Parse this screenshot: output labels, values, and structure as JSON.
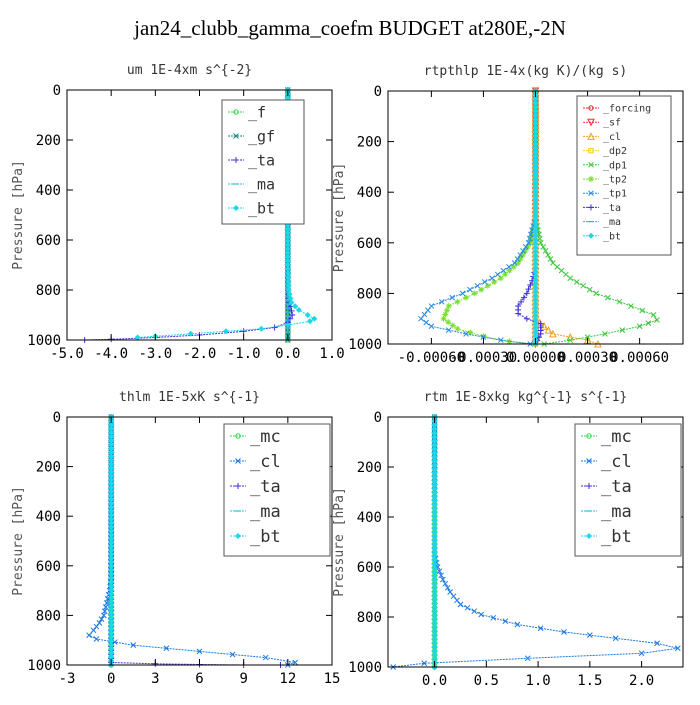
{
  "suptitle": "jan24_clubb_gamma_coefm  BUDGET at280E,-2N",
  "chart_data": [
    {
      "type": "line",
      "title": "um  1E-4xm s^{-2}",
      "ylabel": "Pressure [hPa]",
      "xlim": [
        -5.0,
        1.0
      ],
      "ylim": [
        1000,
        0
      ],
      "xticks": [
        -5.0,
        -4.0,
        -3.0,
        -2.0,
        -1.0,
        0.0,
        1.0
      ],
      "xtick_labels": [
        "-5.0",
        "-4.0",
        "-3.0",
        "-2.0",
        "-1.0",
        "0.0",
        "1.0"
      ],
      "yticks": [
        0,
        200,
        400,
        600,
        800,
        1000
      ],
      "ytick_labels": [
        "0",
        "200",
        "400",
        "600",
        "800",
        "1000"
      ],
      "legend": "top-right",
      "series": [
        {
          "name": "_f",
          "color": "#2fd84a",
          "marker": "o",
          "x": [
            0.0,
            0.0
          ],
          "y": [
            0,
            1000
          ]
        },
        {
          "name": "_gf",
          "color": "#16867a",
          "marker": "x",
          "x": [
            0.0,
            0.0
          ],
          "y": [
            0,
            1000
          ]
        },
        {
          "name": "_ta",
          "color": "#3b2fd8",
          "marker": "+",
          "x": [
            0.0,
            0.0,
            0.01,
            0.05,
            0.1,
            0.0,
            -0.3,
            -1.0,
            -2.0,
            -3.0,
            -4.0,
            -4.6
          ],
          "y": [
            0,
            700,
            800,
            850,
            900,
            930,
            950,
            965,
            980,
            990,
            997,
            1000
          ]
        },
        {
          "name": "_ma",
          "color": "#2eb8d8",
          "marker": "-",
          "x": [
            0.0,
            0.0
          ],
          "y": [
            0,
            1000
          ]
        },
        {
          "name": "_bt",
          "color": "#1ad8e8",
          "marker": "D",
          "x": [
            0.0,
            0.0,
            0.02,
            0.08,
            0.25,
            0.45,
            0.6,
            0.5,
            0.0,
            -0.6,
            -1.4,
            -2.2,
            -3.0,
            -3.4
          ],
          "y": [
            0,
            700,
            800,
            850,
            880,
            900,
            915,
            925,
            940,
            955,
            965,
            975,
            985,
            990
          ]
        }
      ]
    },
    {
      "type": "line",
      "title": "rtpthlp  1E-4x(kg K)/(kg s)",
      "ylabel": "Pressure [hPa]",
      "xlim": [
        -0.00085,
        0.00085
      ],
      "ylim": [
        1000,
        0
      ],
      "xticks": [
        -0.0006,
        -0.0003,
        0.0,
        0.0003,
        0.0006
      ],
      "xtick_labels": [
        "-0.00060",
        "-0.00030",
        "0.00000",
        "0.00030",
        "0.00060"
      ],
      "yticks": [
        0,
        200,
        400,
        600,
        800,
        1000
      ],
      "ytick_labels": [
        "0",
        "200",
        "400",
        "600",
        "800",
        "1000"
      ],
      "legend": "top-right",
      "series": [
        {
          "name": "_forcing",
          "color": "#e0282a",
          "marker": "o",
          "x": [
            0.0,
            0.0
          ],
          "y": [
            0,
            1000
          ]
        },
        {
          "name": "_sf",
          "color": "#ff2a2a",
          "marker": "v",
          "x": [
            0.0,
            0.0
          ],
          "y": [
            0,
            1000
          ]
        },
        {
          "name": "_cl",
          "color": "#f0a020",
          "marker": "^",
          "x": [
            0.0,
            0.0,
            0.0001,
            0.0003,
            0.00036
          ],
          "y": [
            0,
            900,
            960,
            985,
            1000
          ]
        },
        {
          "name": "_dp2",
          "color": "#f0d020",
          "marker": "s",
          "x": [
            0.0,
            0.0
          ],
          "y": [
            0,
            1000
          ]
        },
        {
          "name": "_dp1",
          "color": "#3cc83c",
          "marker": "x",
          "x": [
            0.0,
            0.0,
            3e-05,
            0.0001,
            0.0002,
            0.00035,
            0.00055,
            0.00068,
            0.0007,
            0.0006,
            0.0004,
            0.0002,
            5e-05
          ],
          "y": [
            0,
            500,
            600,
            680,
            740,
            800,
            850,
            885,
            905,
            930,
            960,
            985,
            1000
          ]
        },
        {
          "name": "_tp2",
          "color": "#7ae030",
          "marker": "*",
          "x": [
            0.0,
            0.0,
            -3e-05,
            -0.0001,
            -0.0002,
            -0.00035,
            -0.0005,
            -0.00053,
            -0.00045,
            -0.0003,
            -0.00015,
            0.0
          ],
          "y": [
            0,
            500,
            600,
            680,
            740,
            800,
            850,
            900,
            940,
            970,
            990,
            1000
          ]
        },
        {
          "name": "_tp1",
          "color": "#2a8ae0",
          "marker": "x",
          "x": [
            0.0,
            0.0,
            -4e-05,
            -0.00012,
            -0.00025,
            -0.00042,
            -0.0006,
            -0.00066,
            -0.0006,
            -0.0004,
            -0.0002,
            -3e-05
          ],
          "y": [
            0,
            500,
            600,
            680,
            740,
            800,
            850,
            900,
            930,
            960,
            985,
            1000
          ]
        },
        {
          "name": "_ta",
          "color": "#3b2fd8",
          "marker": "+",
          "x": [
            0.0,
            0.0,
            -2e-05,
            -5e-05,
            -0.0001,
            -0.0001,
            -5e-05,
            3e-05,
            3e-05,
            0.0
          ],
          "y": [
            0,
            700,
            750,
            800,
            850,
            880,
            900,
            920,
            960,
            1000
          ]
        },
        {
          "name": "_ma",
          "color": "#2eb8d8",
          "marker": "-",
          "x": [
            0.0,
            0.0
          ],
          "y": [
            0,
            1000
          ]
        },
        {
          "name": "_bt",
          "color": "#1ad8e8",
          "marker": "D",
          "x": [
            0.0,
            0.0
          ],
          "y": [
            0,
            1000
          ]
        }
      ]
    },
    {
      "type": "line",
      "title": "thlm  1E-5xK s^{-1}",
      "ylabel": "Pressure [hPa]",
      "xlim": [
        -3,
        15
      ],
      "ylim": [
        1000,
        0
      ],
      "xticks": [
        -3,
        0,
        3,
        6,
        9,
        12,
        15
      ],
      "xtick_labels": [
        "-3",
        "0",
        "3",
        "6",
        "9",
        "12",
        "15"
      ],
      "yticks": [
        0,
        200,
        400,
        600,
        800,
        1000
      ],
      "ytick_labels": [
        "0",
        "200",
        "400",
        "600",
        "800",
        "1000"
      ],
      "legend": "top-right",
      "series": [
        {
          "name": "_mc",
          "color": "#2fd84a",
          "marker": "o",
          "x": [
            0.0,
            0.0
          ],
          "y": [
            0,
            1000
          ]
        },
        {
          "name": "_cl",
          "color": "#1a78e0",
          "marker": "x",
          "x": [
            0.0,
            0.0,
            -0.1,
            -0.3,
            -0.5,
            -0.8,
            -1.2,
            -1.5,
            -1.0,
            1.5,
            6.0,
            10.5,
            12.5,
            12.0
          ],
          "y": [
            0,
            650,
            700,
            750,
            800,
            830,
            860,
            880,
            895,
            920,
            945,
            970,
            990,
            1000
          ]
        },
        {
          "name": "_ta",
          "color": "#3b2fd8",
          "marker": "+",
          "x": [
            0.0,
            0.0,
            3.0,
            6.0,
            9.0,
            11.5
          ],
          "y": [
            0,
            990,
            995,
            998,
            1000,
            1000
          ]
        },
        {
          "name": "_ma",
          "color": "#2eb8d8",
          "marker": "-",
          "x": [
            0.0,
            0.0
          ],
          "y": [
            0,
            1000
          ]
        },
        {
          "name": "_bt",
          "color": "#1ad8e8",
          "marker": "D",
          "x": [
            0.0,
            0.0
          ],
          "y": [
            0,
            1000
          ]
        }
      ]
    },
    {
      "type": "line",
      "title": "rtm  1E-8xkg kg^{-1} s^{-1}",
      "ylabel": "Pressure [hPa]",
      "xlim": [
        -0.45,
        2.4
      ],
      "ylim": [
        1000,
        0
      ],
      "xticks": [
        0.0,
        0.5,
        1.0,
        1.5,
        2.0
      ],
      "xtick_labels": [
        "0.0",
        "0.5",
        "1.0",
        "1.5",
        "2.0"
      ],
      "yticks": [
        0,
        200,
        400,
        600,
        800,
        1000
      ],
      "ytick_labels": [
        "0",
        "200",
        "400",
        "600",
        "800",
        "1000"
      ],
      "legend": "top-right",
      "series": [
        {
          "name": "_mc",
          "color": "#2fd84a",
          "marker": "o",
          "x": [
            0.0,
            0.0
          ],
          "y": [
            0,
            1000
          ]
        },
        {
          "name": "_cl",
          "color": "#1a78e0",
          "marker": "x",
          "x": [
            0.0,
            0.0,
            0.03,
            0.08,
            0.15,
            0.25,
            0.45,
            0.8,
            1.25,
            1.75,
            2.15,
            2.35,
            2.0,
            0.9,
            -0.1,
            -0.4
          ],
          "y": [
            0,
            550,
            600,
            650,
            700,
            750,
            790,
            830,
            860,
            885,
            905,
            925,
            945,
            965,
            985,
            1000
          ]
        },
        {
          "name": "_ta",
          "color": "#3b2fd8",
          "marker": "+",
          "x": [
            0.0,
            0.0
          ],
          "y": [
            0,
            1000
          ]
        },
        {
          "name": "_ma",
          "color": "#2eb8d8",
          "marker": "-",
          "x": [
            0.0,
            0.0
          ],
          "y": [
            0,
            1000
          ]
        },
        {
          "name": "_bt",
          "color": "#1ad8e8",
          "marker": "D",
          "x": [
            0.0,
            0.0
          ],
          "y": [
            0,
            1000
          ]
        }
      ]
    }
  ]
}
